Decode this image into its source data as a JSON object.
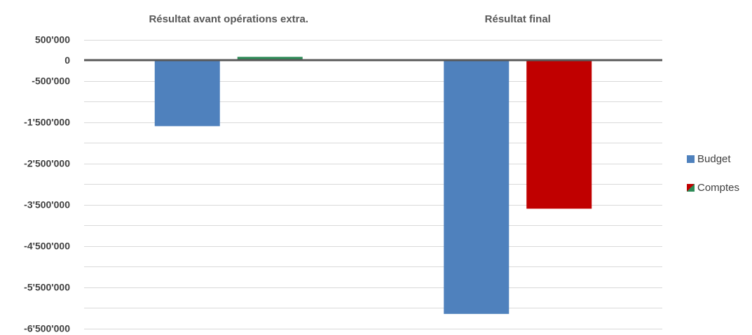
{
  "chart_data": {
    "type": "bar",
    "categories": [
      "Résultat avant opérations extra.",
      "Résultat final"
    ],
    "series": [
      {
        "name": "Budget",
        "values": [
          -1600000,
          -6150000
        ]
      },
      {
        "name": "Comptes",
        "values": [
          80000,
          -3600000
        ]
      }
    ],
    "colors": {
      "Budget": "#4f81bd",
      "Comptes_by_category": [
        "#2e8b57",
        "#c00000"
      ]
    },
    "ytick_labels": [
      "500'000",
      "0",
      "-500'000",
      "-1'500'000",
      "-2'500'000",
      "-3'500'000",
      "-4'500'000",
      "-5'500'000",
      "-6'500'000"
    ],
    "ytick_values": [
      500000,
      0,
      -500000,
      -1500000,
      -2500000,
      -3500000,
      -4500000,
      -5500000,
      -6500000
    ],
    "ylim": [
      -6500000,
      500000
    ],
    "grid": true,
    "category_labels_position": "top",
    "legend_position": "right"
  },
  "legend": {
    "budget_label": "Budget",
    "comptes_label": "Comptes"
  }
}
